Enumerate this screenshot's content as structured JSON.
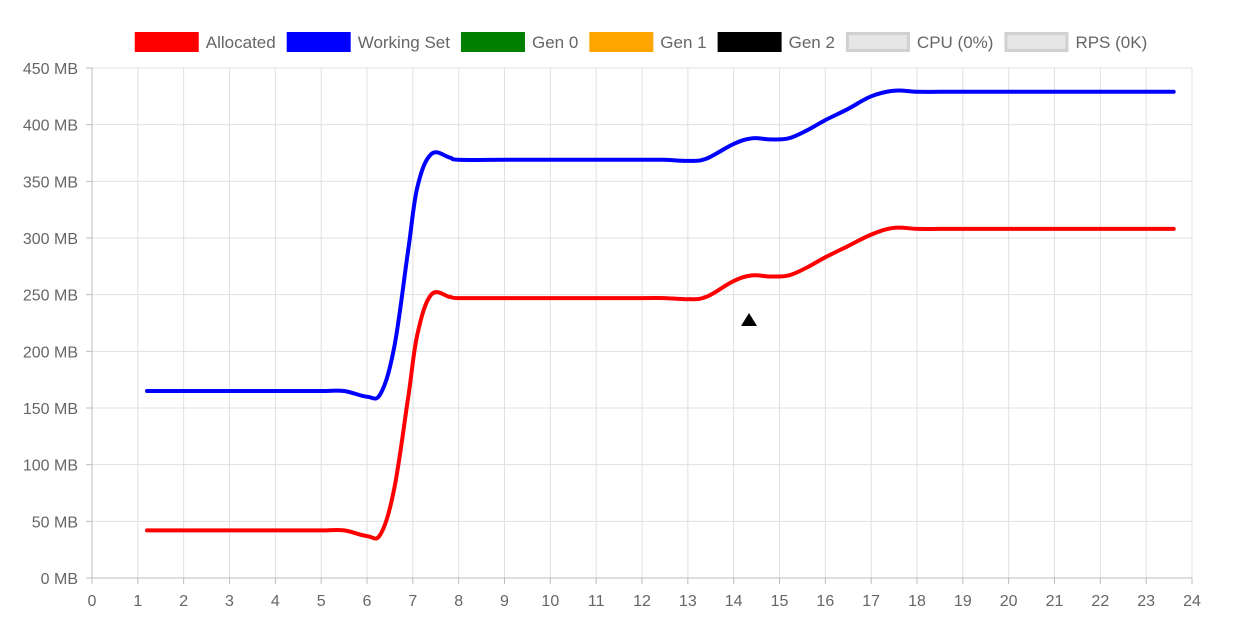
{
  "chart_data": {
    "type": "line",
    "title": "",
    "xlabel": "",
    "ylabel": "",
    "x_ticks": [
      "0",
      "1",
      "2",
      "3",
      "4",
      "5",
      "6",
      "7",
      "8",
      "9",
      "10",
      "11",
      "12",
      "13",
      "14",
      "15",
      "16",
      "17",
      "18",
      "19",
      "20",
      "21",
      "22",
      "23",
      "24"
    ],
    "xlim": [
      0,
      24
    ],
    "y_ticks": [
      0,
      50,
      100,
      150,
      200,
      250,
      300,
      350,
      400,
      450
    ],
    "y_tick_labels": [
      "0 MB",
      "50 MB",
      "100 MB",
      "150 MB",
      "200 MB",
      "250 MB",
      "300 MB",
      "350 MB",
      "400 MB",
      "450 MB"
    ],
    "ylim": [
      0,
      450
    ],
    "grid": true,
    "legend_position": "top",
    "legend": [
      {
        "name": "Allocated",
        "color": "#ff0000",
        "hidden": false
      },
      {
        "name": "Working Set",
        "color": "#0000ff",
        "hidden": false
      },
      {
        "name": "Gen 0",
        "color": "#008000",
        "hidden": false
      },
      {
        "name": "Gen 1",
        "color": "#ffa500",
        "hidden": false
      },
      {
        "name": "Gen 2",
        "color": "#000000",
        "hidden": false
      },
      {
        "name": "CPU (0%)",
        "color": "#e0e0e0",
        "hidden": true
      },
      {
        "name": "RPS (0K)",
        "color": "#e0e0e0",
        "hidden": true
      }
    ],
    "series": [
      {
        "name": "Allocated",
        "color": "#ff0000",
        "points": [
          [
            1.2,
            42
          ],
          [
            2,
            42
          ],
          [
            3,
            42
          ],
          [
            4,
            42
          ],
          [
            5,
            42
          ],
          [
            5.5,
            42
          ],
          [
            6,
            37
          ],
          [
            6.3,
            39
          ],
          [
            6.6,
            80
          ],
          [
            6.9,
            160
          ],
          [
            7.1,
            215
          ],
          [
            7.4,
            250
          ],
          [
            7.8,
            248
          ],
          [
            8,
            247
          ],
          [
            9,
            247
          ],
          [
            10,
            247
          ],
          [
            11,
            247
          ],
          [
            12,
            247
          ],
          [
            12.5,
            247
          ],
          [
            13,
            246
          ],
          [
            13.4,
            248
          ],
          [
            14,
            262
          ],
          [
            14.4,
            267
          ],
          [
            14.8,
            266
          ],
          [
            15.2,
            267
          ],
          [
            15.6,
            274
          ],
          [
            16,
            283
          ],
          [
            16.5,
            293
          ],
          [
            17,
            303
          ],
          [
            17.5,
            309
          ],
          [
            18,
            308
          ],
          [
            18.5,
            308
          ],
          [
            19,
            308
          ],
          [
            20,
            308
          ],
          [
            21,
            308
          ],
          [
            22,
            308
          ],
          [
            23,
            308
          ],
          [
            23.6,
            308
          ]
        ]
      },
      {
        "name": "Working Set",
        "color": "#0000ff",
        "points": [
          [
            1.2,
            165
          ],
          [
            2,
            165
          ],
          [
            3,
            165
          ],
          [
            4,
            165
          ],
          [
            5,
            165
          ],
          [
            5.5,
            165
          ],
          [
            6,
            160
          ],
          [
            6.3,
            163
          ],
          [
            6.6,
            205
          ],
          [
            6.9,
            290
          ],
          [
            7.1,
            345
          ],
          [
            7.4,
            374
          ],
          [
            7.8,
            371
          ],
          [
            8,
            369
          ],
          [
            9,
            369
          ],
          [
            10,
            369
          ],
          [
            11,
            369
          ],
          [
            12,
            369
          ],
          [
            12.5,
            369
          ],
          [
            13,
            368
          ],
          [
            13.4,
            370
          ],
          [
            14,
            383
          ],
          [
            14.4,
            388
          ],
          [
            14.8,
            387
          ],
          [
            15.2,
            388
          ],
          [
            15.6,
            395
          ],
          [
            16,
            404
          ],
          [
            16.5,
            414
          ],
          [
            17,
            425
          ],
          [
            17.5,
            430
          ],
          [
            18,
            429
          ],
          [
            18.5,
            429
          ],
          [
            19,
            429
          ],
          [
            20,
            429
          ],
          [
            21,
            429
          ],
          [
            22,
            429
          ],
          [
            23,
            429
          ],
          [
            23.6,
            429
          ]
        ]
      }
    ]
  },
  "cursor": {
    "shape": "triangle-up",
    "color": "#000000"
  }
}
